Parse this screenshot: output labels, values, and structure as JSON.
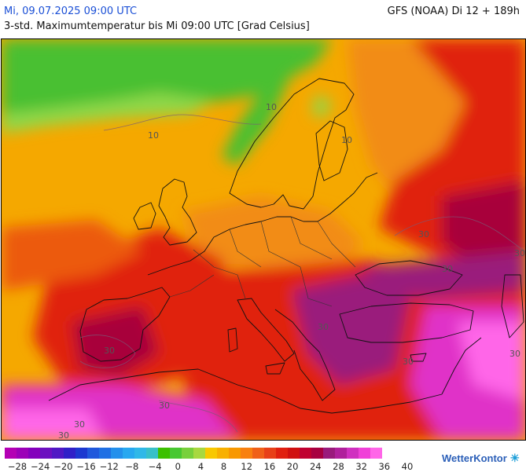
{
  "header": {
    "date_label": "Mi, 09.07.2025 09:00 UTC",
    "model_label": "GFS (NOAA) Di 12 + 189h",
    "subtitle": "3-std. Maximumtemperatur bis Mi 09:00 UTC [Grad Celsius]"
  },
  "map": {
    "region": "Europe",
    "variable": "Maximum temperature (3h)",
    "colors": {
      "cold_green": "#48c032",
      "light_green": "#8fd84a",
      "yellow_orange": "#f7b500",
      "orange": "#f28c18",
      "deep_orange": "#ec5a10",
      "red": "#e02010",
      "dark_red": "#a8003a",
      "purple_magenta": "#9a1a7c",
      "magenta": "#e030c8",
      "pink": "#ff66e8"
    },
    "contour_labels": [
      "10",
      "10",
      "10",
      "30",
      "30",
      "30",
      "30",
      "30",
      "30",
      "30",
      "30",
      "30",
      "30",
      "30"
    ]
  },
  "legend": {
    "labels": [
      "−28",
      "−24",
      "−20",
      "−16",
      "−12",
      "−8",
      "−4",
      "0",
      "4",
      "8",
      "12",
      "16",
      "20",
      "24",
      "28",
      "32",
      "36",
      "40"
    ],
    "swatches": [
      "#b400b4",
      "#9c00b8",
      "#8400bc",
      "#6c10c0",
      "#5018c4",
      "#3020c8",
      "#1c38d0",
      "#2058dc",
      "#2070e4",
      "#2490ec",
      "#28a8f0",
      "#30b8e8",
      "#38c0c8",
      "#3cc000",
      "#48c832",
      "#78d03c",
      "#a8d840",
      "#f8c800",
      "#f8b000",
      "#f89800",
      "#f88010",
      "#f06018",
      "#e84018",
      "#e02010",
      "#d01010",
      "#c00030",
      "#a80040",
      "#9a1a7c",
      "#b0209c",
      "#d030c0",
      "#f040d8",
      "#ff66e8"
    ]
  },
  "brand": {
    "name": "WetterKontor",
    "icon": "sun-cloud-icon"
  }
}
